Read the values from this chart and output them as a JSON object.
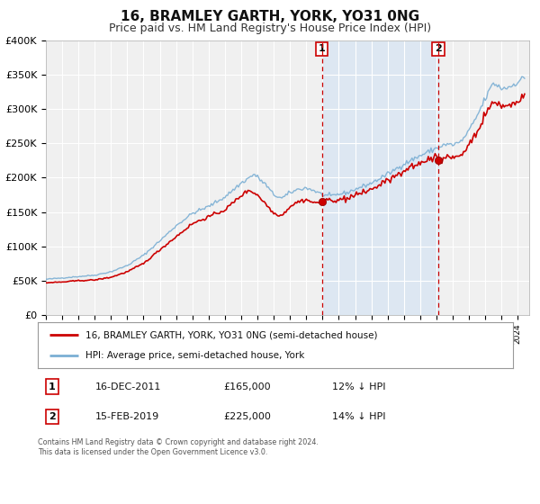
{
  "title": "16, BRAMLEY GARTH, YORK, YO31 0NG",
  "subtitle": "Price paid vs. HM Land Registry's House Price Index (HPI)",
  "ylim": [
    0,
    400000
  ],
  "yticks": [
    0,
    50000,
    100000,
    150000,
    200000,
    250000,
    300000,
    350000,
    400000
  ],
  "ytick_labels": [
    "£0",
    "£50K",
    "£100K",
    "£150K",
    "£200K",
    "£250K",
    "£300K",
    "£350K",
    "£400K"
  ],
  "xlim_start": 1995.0,
  "xlim_end": 2024.7,
  "hpi_color": "#7bafd4",
  "price_color": "#cc0000",
  "marker1_date": 2011.96,
  "marker1_price": 165000,
  "marker2_date": 2019.12,
  "marker2_price": 225000,
  "vline_color": "#cc0000",
  "shade_color": "#cce0f5",
  "legend_label1": "16, BRAMLEY GARTH, YORK, YO31 0NG (semi-detached house)",
  "legend_label2": "HPI: Average price, semi-detached house, York",
  "table_row1": [
    "1",
    "16-DEC-2011",
    "£165,000",
    "12% ↓ HPI"
  ],
  "table_row2": [
    "2",
    "15-FEB-2019",
    "£225,000",
    "14% ↓ HPI"
  ],
  "footnote": "Contains HM Land Registry data © Crown copyright and database right 2024.\nThis data is licensed under the Open Government Licence v3.0.",
  "plot_bg_color": "#f0f0f0",
  "grid_color": "#ffffff",
  "title_fontsize": 11,
  "subtitle_fontsize": 9
}
